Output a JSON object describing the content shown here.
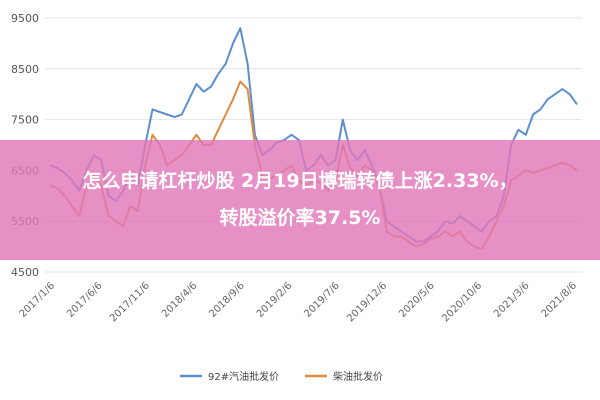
{
  "overlay": {
    "line1": "怎么申请杠杆炒股 2月19日博瑞转债上涨2.33%，",
    "line2": "转股溢价率37.5%",
    "color": "#e078b9"
  },
  "chart_data": {
    "type": "line",
    "title": "",
    "xlabel": "",
    "ylabel": "",
    "ylim": [
      4500,
      9500
    ],
    "y_ticks": [
      "9500",
      "8500",
      "7500",
      "6500",
      "5500",
      "4500"
    ],
    "x_ticks": [
      "2017/1/6",
      "2017/6/6",
      "2017/11/6",
      "2018/4/6",
      "2018/9/6",
      "2019/2/6",
      "2019/7/6",
      "2019/12/6",
      "2020/5/6",
      "2020/10/6",
      "2021/3/6",
      "2021/8/6"
    ],
    "grid": true,
    "legend_position": "bottom",
    "series": [
      {
        "name": "92#汽油批发价",
        "color": "#5b8fd0",
        "values": [
          6600,
          6550,
          6450,
          6300,
          6100,
          6500,
          6800,
          6700,
          6000,
          5900,
          6100,
          6400,
          6200,
          7000,
          7700,
          7650,
          7600,
          7550,
          7600,
          7900,
          8200,
          8050,
          8150,
          8400,
          8600,
          9000,
          9300,
          8600,
          7200,
          6800,
          6900,
          7050,
          7100,
          7200,
          7100,
          6500,
          6600,
          6800,
          6600,
          6700,
          7500,
          6900,
          6700,
          6900,
          6600,
          6200,
          5500,
          5400,
          5300,
          5200,
          5100,
          5100,
          5200,
          5300,
          5500,
          5450,
          5600,
          5500,
          5400,
          5300,
          5500,
          5600,
          6000,
          7000,
          7300,
          7200,
          7600,
          7700,
          7900,
          8000,
          8100,
          8000,
          7800
        ]
      },
      {
        "name": "柴油批发价",
        "color": "#e08a3c",
        "values": [
          6200,
          6150,
          6000,
          5800,
          5600,
          6200,
          6400,
          6200,
          5600,
          5500,
          5400,
          5800,
          5700,
          6600,
          7200,
          7000,
          6600,
          6700,
          6800,
          7000,
          7200,
          7000,
          7000,
          7300,
          7600,
          7900,
          8250,
          8100,
          7000,
          6400,
          6350,
          6400,
          6500,
          6600,
          6300,
          6200,
          6300,
          6250,
          6100,
          6300,
          7000,
          6550,
          6400,
          6600,
          6500,
          6200,
          5300,
          5200,
          5200,
          5100,
          5000,
          5050,
          5150,
          5200,
          5300,
          5200,
          5300,
          5100,
          5000,
          4950,
          5200,
          5500,
          5800,
          6300,
          6400,
          6500,
          6450,
          6500,
          6550,
          6600,
          6650,
          6600,
          6500
        ]
      }
    ]
  }
}
